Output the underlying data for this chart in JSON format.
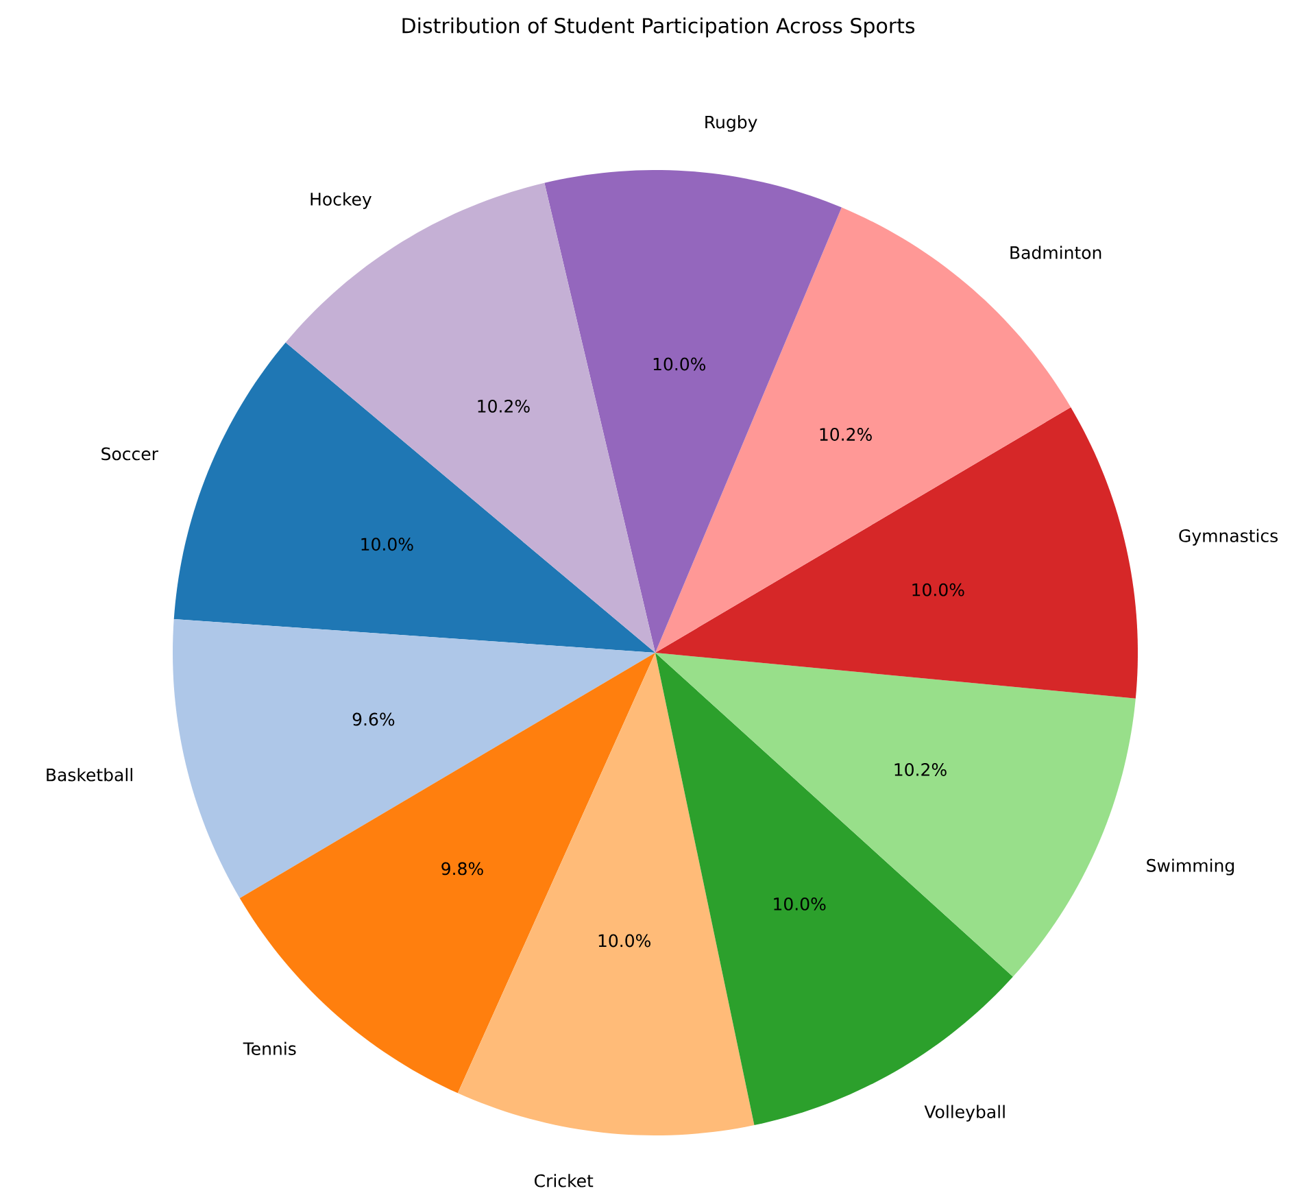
{
  "chart_data": {
    "type": "pie",
    "title": "Distribution of Student Participation Across Sports",
    "categories": [
      "Soccer",
      "Basketball",
      "Tennis",
      "Cricket",
      "Volleyball",
      "Swimming",
      "Gymnastics",
      "Badminton",
      "Rugby",
      "Hockey"
    ],
    "values": [
      10.0,
      9.6,
      9.8,
      10.0,
      10.0,
      10.2,
      10.0,
      10.2,
      10.0,
      10.2
    ],
    "value_labels": [
      "10.0%",
      "9.6%",
      "9.8%",
      "10.0%",
      "10.0%",
      "10.2%",
      "10.0%",
      "10.2%",
      "10.0%",
      "10.2%"
    ],
    "colors": [
      "#1f77b4",
      "#aec7e8",
      "#ff7f0e",
      "#ffbb78",
      "#2ca02c",
      "#98df8a",
      "#d62728",
      "#ff9896",
      "#9467bd",
      "#c5b0d5"
    ]
  }
}
